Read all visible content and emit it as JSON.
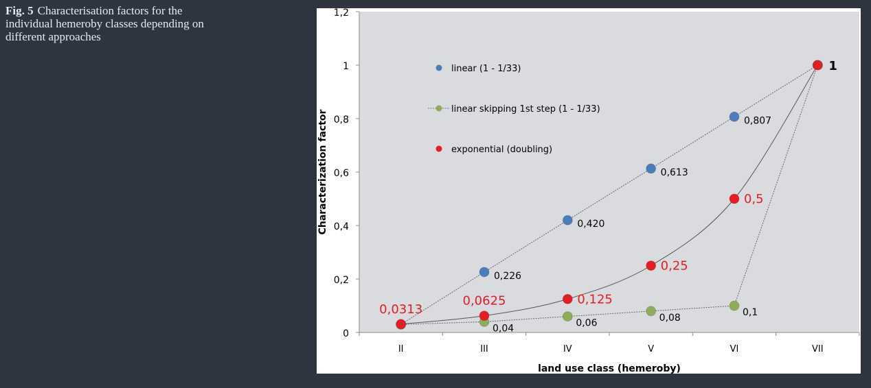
{
  "caption": {
    "number": "Fig. 5",
    "text": "Characterisation factors for the individual hemeroby classes depending on different approaches"
  },
  "colors": {
    "plot_bg": "#d9dbde",
    "linear": "#4a7ebb",
    "skipping": "#8fac5a",
    "exponential": "#e31e24",
    "exp_label": "#e31e24"
  },
  "chart_data": {
    "type": "scatter",
    "xlabel": "land use class (hemeroby)",
    "ylabel": "Characterization  factor",
    "categories": [
      "II",
      "III",
      "IV",
      "V",
      "VI",
      "VII"
    ],
    "ylim": [
      0,
      1.2
    ],
    "yticks": [
      "0",
      "0,2",
      "0,4",
      "0,6",
      "0,8",
      "1",
      "1,2"
    ],
    "grid": false,
    "legend_position": "top-left",
    "series": [
      {
        "name": "linear (1 - 1/33)",
        "key": "linear",
        "values": [
          0.03,
          0.226,
          0.42,
          0.613,
          0.807,
          1
        ],
        "labels": [
          "",
          "0,226",
          "0,420",
          "0,613",
          "0,807",
          ""
        ]
      },
      {
        "name": "linear skipping 1st step (1 - 1/33)",
        "key": "skipping",
        "values": [
          0.03,
          0.04,
          0.06,
          0.08,
          0.1,
          1
        ],
        "labels": [
          "",
          "0,04",
          "0,06",
          "0,08",
          "0,1",
          ""
        ]
      },
      {
        "name": "exponential (doubling)",
        "key": "exponential",
        "values": [
          0.0313,
          0.0625,
          0.125,
          0.25,
          0.5,
          1
        ],
        "labels": [
          "0,0313",
          "0,0625",
          "0,125",
          "0,25",
          "0,5",
          "1"
        ]
      }
    ]
  }
}
